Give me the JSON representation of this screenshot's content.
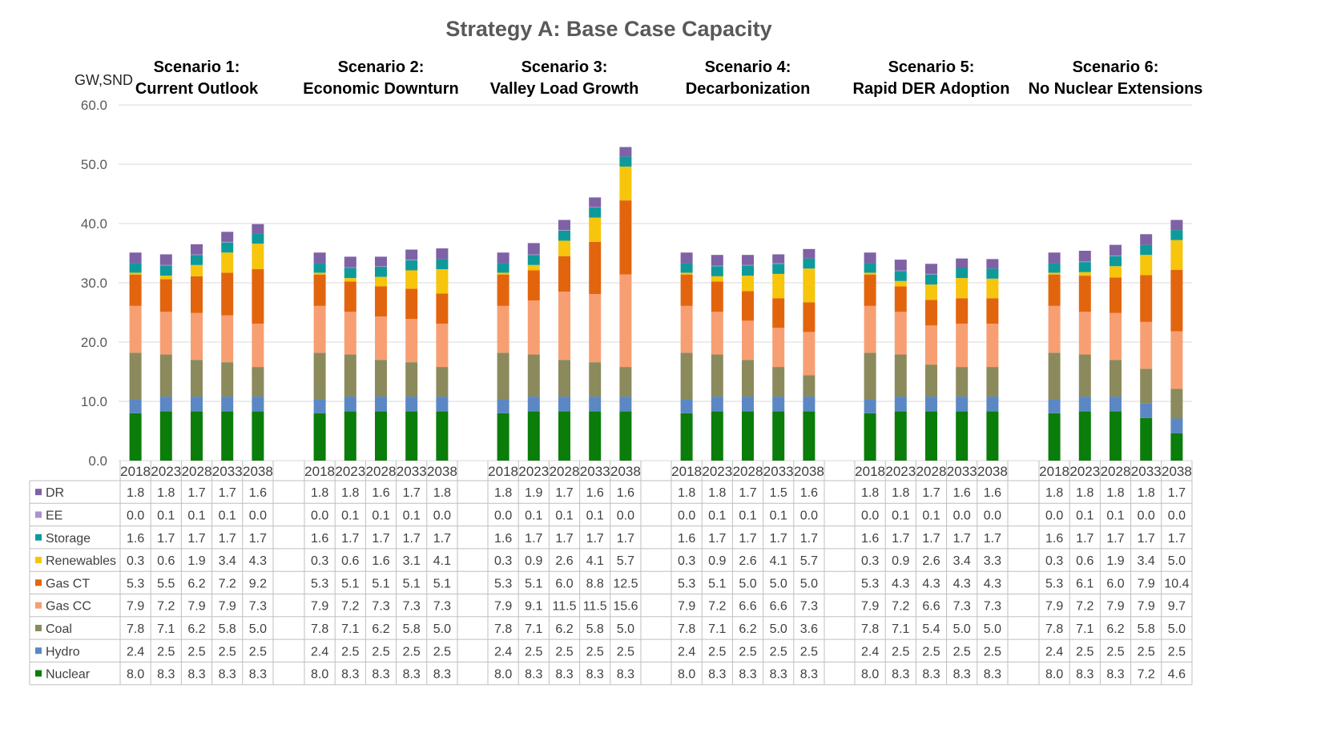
{
  "chart_data": {
    "type": "bar",
    "stacked": true,
    "title": "Strategy A: Base Case Capacity",
    "ylabel": "GW,SND",
    "ylim": [
      0,
      60
    ],
    "yticks": [
      "0.0",
      "10.0",
      "20.0",
      "30.0",
      "40.0",
      "50.0",
      "60.0"
    ],
    "grid": true,
    "legend": "data-table-left",
    "years": [
      "2018",
      "2023",
      "2028",
      "2033",
      "2038"
    ],
    "groups": [
      {
        "title_line1": "Scenario 1:",
        "title_line2": "Current Outlook"
      },
      {
        "title_line1": "Scenario 2:",
        "title_line2": "Economic Downturn"
      },
      {
        "title_line1": "Scenario 3:",
        "title_line2": "Valley Load Growth"
      },
      {
        "title_line1": "Scenario 4:",
        "title_line2": "Decarbonization"
      },
      {
        "title_line1": "Scenario 5:",
        "title_line2": "Rapid DER Adoption"
      },
      {
        "title_line1": "Scenario 6:",
        "title_line2": "No Nuclear Extensions"
      }
    ],
    "series": [
      {
        "name": "Nuclear",
        "color": "#0a7d0a",
        "values": [
          [
            "8.0",
            "8.3",
            "8.3",
            "8.3",
            "8.3"
          ],
          [
            "8.0",
            "8.3",
            "8.3",
            "8.3",
            "8.3"
          ],
          [
            "8.0",
            "8.3",
            "8.3",
            "8.3",
            "8.3"
          ],
          [
            "8.0",
            "8.3",
            "8.3",
            "8.3",
            "8.3"
          ],
          [
            "8.0",
            "8.3",
            "8.3",
            "8.3",
            "8.3"
          ],
          [
            "8.0",
            "8.3",
            "8.3",
            "7.2",
            "4.6"
          ]
        ]
      },
      {
        "name": "Hydro",
        "color": "#5b87c5",
        "values": [
          [
            "2.4",
            "2.5",
            "2.5",
            "2.5",
            "2.5"
          ],
          [
            "2.4",
            "2.5",
            "2.5",
            "2.5",
            "2.5"
          ],
          [
            "2.4",
            "2.5",
            "2.5",
            "2.5",
            "2.5"
          ],
          [
            "2.4",
            "2.5",
            "2.5",
            "2.5",
            "2.5"
          ],
          [
            "2.4",
            "2.5",
            "2.5",
            "2.5",
            "2.5"
          ],
          [
            "2.4",
            "2.5",
            "2.5",
            "2.5",
            "2.5"
          ]
        ]
      },
      {
        "name": "Coal",
        "color": "#8b8a5c",
        "values": [
          [
            "7.8",
            "7.1",
            "6.2",
            "5.8",
            "5.0"
          ],
          [
            "7.8",
            "7.1",
            "6.2",
            "5.8",
            "5.0"
          ],
          [
            "7.8",
            "7.1",
            "6.2",
            "5.8",
            "5.0"
          ],
          [
            "7.8",
            "7.1",
            "6.2",
            "5.0",
            "3.6"
          ],
          [
            "7.8",
            "7.1",
            "5.4",
            "5.0",
            "5.0"
          ],
          [
            "7.8",
            "7.1",
            "6.2",
            "5.8",
            "5.0"
          ]
        ]
      },
      {
        "name": "Gas CC",
        "color": "#f79f73",
        "values": [
          [
            "7.9",
            "7.2",
            "7.9",
            "7.9",
            "7.3"
          ],
          [
            "7.9",
            "7.2",
            "7.3",
            "7.3",
            "7.3"
          ],
          [
            "7.9",
            "9.1",
            "11.5",
            "11.5",
            "15.6"
          ],
          [
            "7.9",
            "7.2",
            "6.6",
            "6.6",
            "7.3"
          ],
          [
            "7.9",
            "7.2",
            "6.6",
            "7.3",
            "7.3"
          ],
          [
            "7.9",
            "7.2",
            "7.9",
            "7.9",
            "9.7"
          ]
        ]
      },
      {
        "name": "Gas CT",
        "color": "#e2650e",
        "values": [
          [
            "5.3",
            "5.5",
            "6.2",
            "7.2",
            "9.2"
          ],
          [
            "5.3",
            "5.1",
            "5.1",
            "5.1",
            "5.1"
          ],
          [
            "5.3",
            "5.1",
            "6.0",
            "8.8",
            "12.5"
          ],
          [
            "5.3",
            "5.1",
            "5.0",
            "5.0",
            "5.0"
          ],
          [
            "5.3",
            "4.3",
            "4.3",
            "4.3",
            "4.3"
          ],
          [
            "5.3",
            "6.1",
            "6.0",
            "7.9",
            "10.4"
          ]
        ]
      },
      {
        "name": "Renewables",
        "color": "#f6c50c",
        "values": [
          [
            "0.3",
            "0.6",
            "1.9",
            "3.4",
            "4.3"
          ],
          [
            "0.3",
            "0.6",
            "1.6",
            "3.1",
            "4.1"
          ],
          [
            "0.3",
            "0.9",
            "2.6",
            "4.1",
            "5.7"
          ],
          [
            "0.3",
            "0.9",
            "2.6",
            "4.1",
            "5.7"
          ],
          [
            "0.3",
            "0.9",
            "2.6",
            "3.4",
            "3.3"
          ],
          [
            "0.3",
            "0.6",
            "1.9",
            "3.4",
            "5.0"
          ]
        ]
      },
      {
        "name": "Storage",
        "color": "#0e9a9a",
        "values": [
          [
            "1.6",
            "1.7",
            "1.7",
            "1.7",
            "1.7"
          ],
          [
            "1.6",
            "1.7",
            "1.7",
            "1.7",
            "1.7"
          ],
          [
            "1.6",
            "1.7",
            "1.7",
            "1.7",
            "1.7"
          ],
          [
            "1.6",
            "1.7",
            "1.7",
            "1.7",
            "1.7"
          ],
          [
            "1.6",
            "1.7",
            "1.7",
            "1.7",
            "1.7"
          ],
          [
            "1.6",
            "1.7",
            "1.7",
            "1.7",
            "1.7"
          ]
        ]
      },
      {
        "name": "EE",
        "color": "#a994cc",
        "values": [
          [
            "0.0",
            "0.1",
            "0.1",
            "0.1",
            "0.0"
          ],
          [
            "0.0",
            "0.1",
            "0.1",
            "0.1",
            "0.0"
          ],
          [
            "0.0",
            "0.1",
            "0.1",
            "0.1",
            "0.0"
          ],
          [
            "0.0",
            "0.1",
            "0.1",
            "0.1",
            "0.0"
          ],
          [
            "0.0",
            "0.1",
            "0.1",
            "0.0",
            "0.0"
          ],
          [
            "0.0",
            "0.1",
            "0.1",
            "0.0",
            "0.0"
          ]
        ]
      },
      {
        "name": "DR",
        "color": "#7f61a5",
        "values": [
          [
            "1.8",
            "1.8",
            "1.7",
            "1.7",
            "1.6"
          ],
          [
            "1.8",
            "1.8",
            "1.6",
            "1.7",
            "1.8"
          ],
          [
            "1.8",
            "1.9",
            "1.7",
            "1.6",
            "1.6"
          ],
          [
            "1.8",
            "1.8",
            "1.7",
            "1.5",
            "1.6"
          ],
          [
            "1.8",
            "1.8",
            "1.7",
            "1.6",
            "1.6"
          ],
          [
            "1.8",
            "1.8",
            "1.8",
            "1.8",
            "1.7"
          ]
        ]
      }
    ]
  }
}
